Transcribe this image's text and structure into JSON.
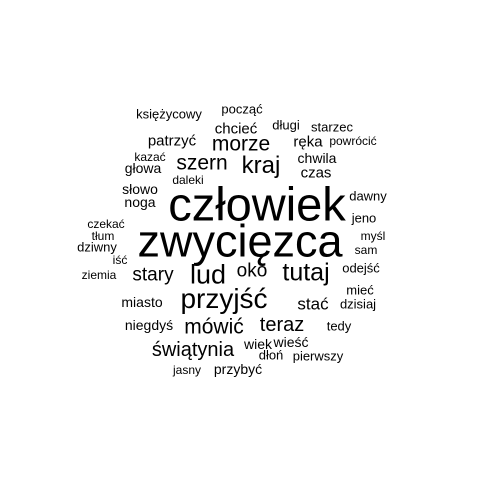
{
  "words": [
    {
      "text": "człowiek",
      "weight": 1.0
    },
    {
      "text": "zwycięzca",
      "weight": 1.0
    },
    {
      "text": "przyjść",
      "weight": 0.62
    },
    {
      "text": "lud",
      "weight": 0.6
    },
    {
      "text": "tutaj",
      "weight": 0.55
    },
    {
      "text": "kraj",
      "weight": 0.5
    },
    {
      "text": "morze",
      "weight": 0.45
    },
    {
      "text": "szern",
      "weight": 0.45
    },
    {
      "text": "mówić",
      "weight": 0.45
    },
    {
      "text": "teraz",
      "weight": 0.42
    },
    {
      "text": "świątynia",
      "weight": 0.42
    },
    {
      "text": "stary",
      "weight": 0.4
    },
    {
      "text": "oko",
      "weight": 0.4
    },
    {
      "text": "stać",
      "weight": 0.36
    },
    {
      "text": "czas",
      "weight": 0.32
    },
    {
      "text": "patrzyć",
      "weight": 0.32
    },
    {
      "text": "chcieć",
      "weight": 0.32
    },
    {
      "text": "ręka",
      "weight": 0.3
    },
    {
      "text": "głowa",
      "weight": 0.3
    },
    {
      "text": "słowo",
      "weight": 0.28
    },
    {
      "text": "noga",
      "weight": 0.28
    },
    {
      "text": "miasto",
      "weight": 0.28
    },
    {
      "text": "niegdyś",
      "weight": 0.28
    },
    {
      "text": "chwila",
      "weight": 0.28
    },
    {
      "text": "wiek",
      "weight": 0.26
    },
    {
      "text": "wieść",
      "weight": 0.26
    },
    {
      "text": "przybyć",
      "weight": 0.26
    },
    {
      "text": "księżycowy",
      "weight": 0.24
    },
    {
      "text": "począć",
      "weight": 0.24
    },
    {
      "text": "długi",
      "weight": 0.24
    },
    {
      "text": "starzec",
      "weight": 0.24
    },
    {
      "text": "powrócić",
      "weight": 0.22
    },
    {
      "text": "kazać",
      "weight": 0.22
    },
    {
      "text": "daleki",
      "weight": 0.22
    },
    {
      "text": "dawny",
      "weight": 0.24
    },
    {
      "text": "czekać",
      "weight": 0.22
    },
    {
      "text": "jeno",
      "weight": 0.24
    },
    {
      "text": "tłum",
      "weight": 0.22
    },
    {
      "text": "myśl",
      "weight": 0.22
    },
    {
      "text": "dziwny",
      "weight": 0.24
    },
    {
      "text": "sam",
      "weight": 0.22
    },
    {
      "text": "iść",
      "weight": 0.22
    },
    {
      "text": "ziemia",
      "weight": 0.22
    },
    {
      "text": "odejść",
      "weight": 0.24
    },
    {
      "text": "mieć",
      "weight": 0.24
    },
    {
      "text": "dzisiaj",
      "weight": 0.24
    },
    {
      "text": "tedy",
      "weight": 0.24
    },
    {
      "text": "dłoń",
      "weight": 0.24
    },
    {
      "text": "pierwszy",
      "weight": 0.24
    },
    {
      "text": "jasny",
      "weight": 0.22
    }
  ]
}
